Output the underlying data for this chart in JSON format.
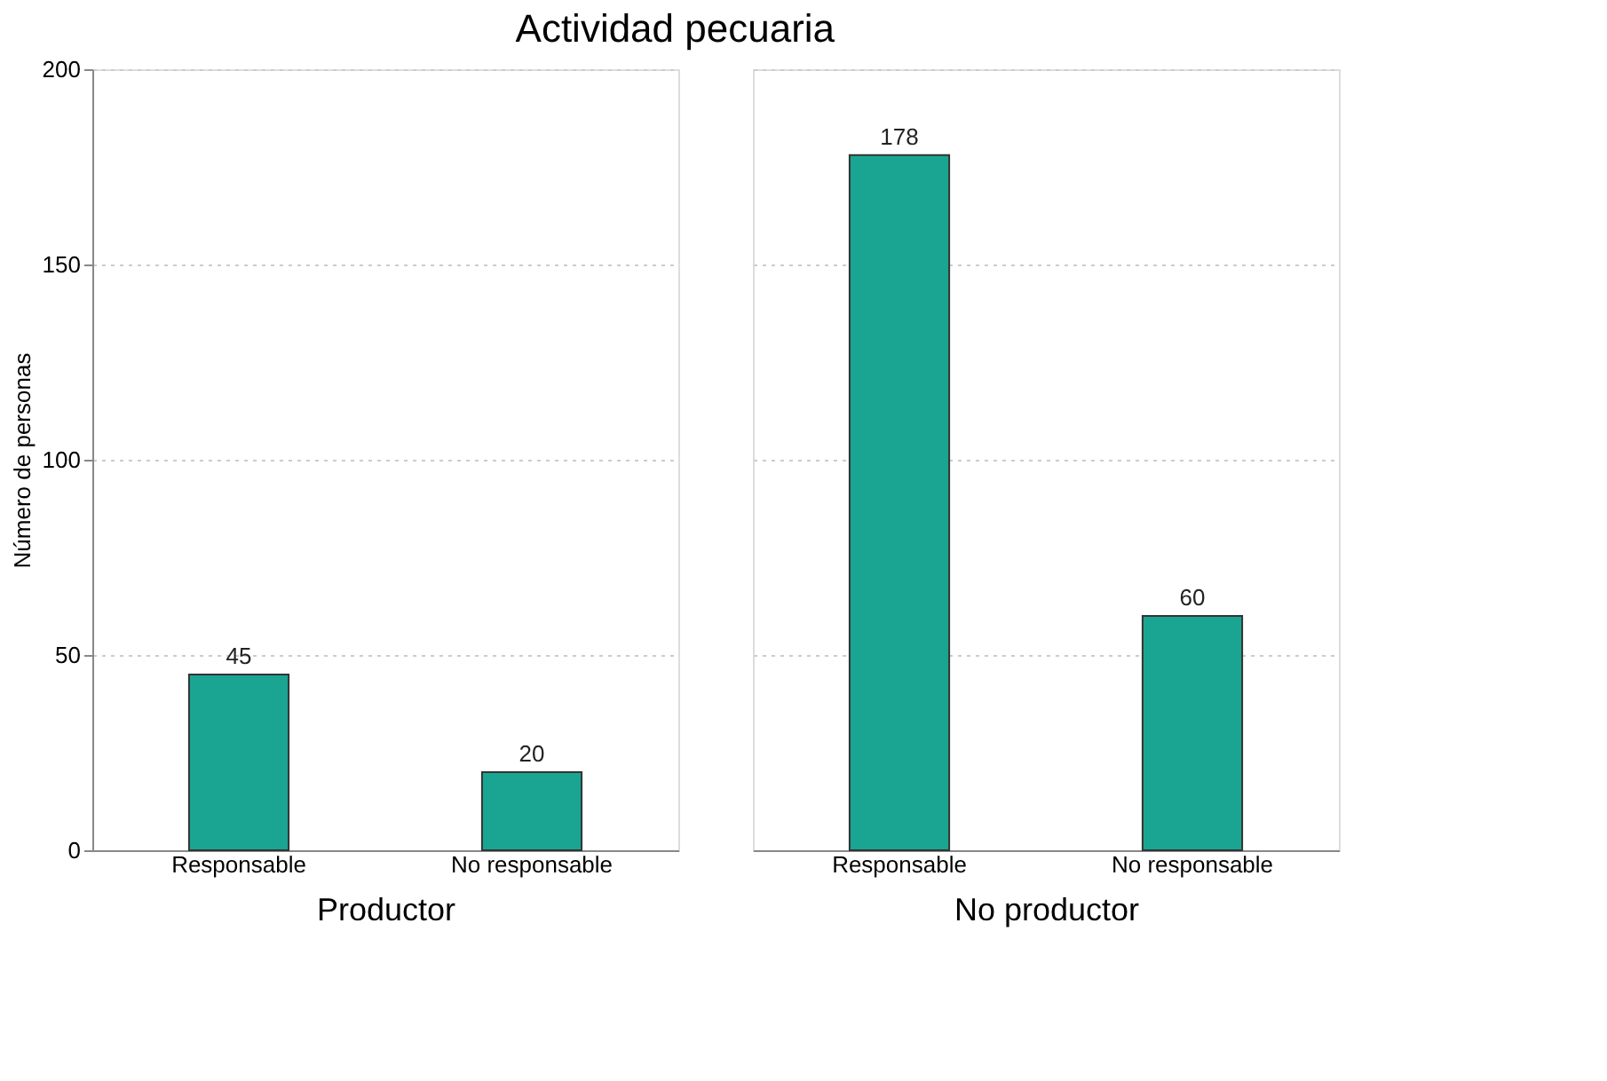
{
  "chart_data": [
    {
      "type": "bar",
      "title": "Actividad pecuaria",
      "ylabel": "Número de personas",
      "xlabel": "Productor",
      "categories": [
        "Responsable",
        "No responsable"
      ],
      "values": [
        45,
        20
      ],
      "color": "#1aa592",
      "ylim": [
        0,
        200
      ],
      "yticks": [
        0,
        50,
        100,
        150,
        200
      ],
      "grid": "y",
      "data_labels": true
    },
    {
      "type": "bar",
      "xlabel": "No productor",
      "categories": [
        "Responsable",
        "No responsable"
      ],
      "values": [
        178,
        60
      ],
      "color": "#1aa592",
      "ylim": [
        0,
        200
      ],
      "yticks": [
        0,
        50,
        100,
        150,
        200
      ],
      "grid": "y",
      "data_labels": true,
      "tick_labels": "x"
    }
  ]
}
